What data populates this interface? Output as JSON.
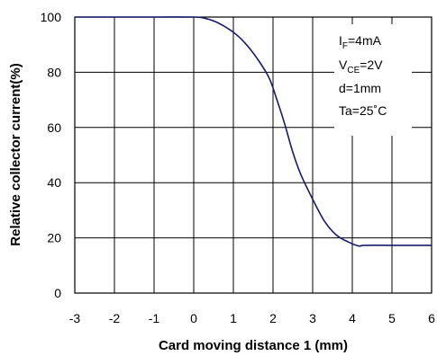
{
  "chart_data": {
    "type": "line",
    "title": "",
    "xlabel": "Card moving distance 1 (mm)",
    "ylabel": "Relative collector current(%)",
    "xlim": [
      -3,
      6
    ],
    "ylim": [
      0,
      100
    ],
    "x_ticks": [
      "-3",
      "-2",
      "-1",
      "0",
      "1",
      "2",
      "3",
      "4",
      "5",
      "6"
    ],
    "y_ticks": [
      "0",
      "20",
      "40",
      "60",
      "80",
      "100"
    ],
    "grid": true,
    "legend": "none",
    "line_color": "#1a1a6e",
    "series": [
      {
        "x": [
          -3,
          -2,
          -1,
          0,
          0.3,
          0.6,
          1.0,
          1.3,
          1.6,
          1.9,
          2.1,
          2.3,
          2.5,
          2.7,
          3.0,
          3.3,
          3.6,
          3.9,
          4.1,
          4.2,
          4.3,
          5,
          6
        ],
        "y": [
          100,
          100,
          100,
          100,
          99.5,
          98,
          94.5,
          90.5,
          85,
          78,
          70,
          61,
          51,
          43,
          34,
          26,
          21,
          18.5,
          17.3,
          17,
          17.3,
          17.3,
          17.3
        ]
      }
    ],
    "annotations": [
      {
        "main": "I",
        "sub": "F",
        "rest": "=4mA"
      },
      {
        "main": "V",
        "sub": "CE",
        "rest": "=2V"
      },
      {
        "main": "d=1mm",
        "sub": "",
        "rest": ""
      },
      {
        "main": "Ta=25˚C",
        "sub": "",
        "rest": ""
      }
    ]
  }
}
